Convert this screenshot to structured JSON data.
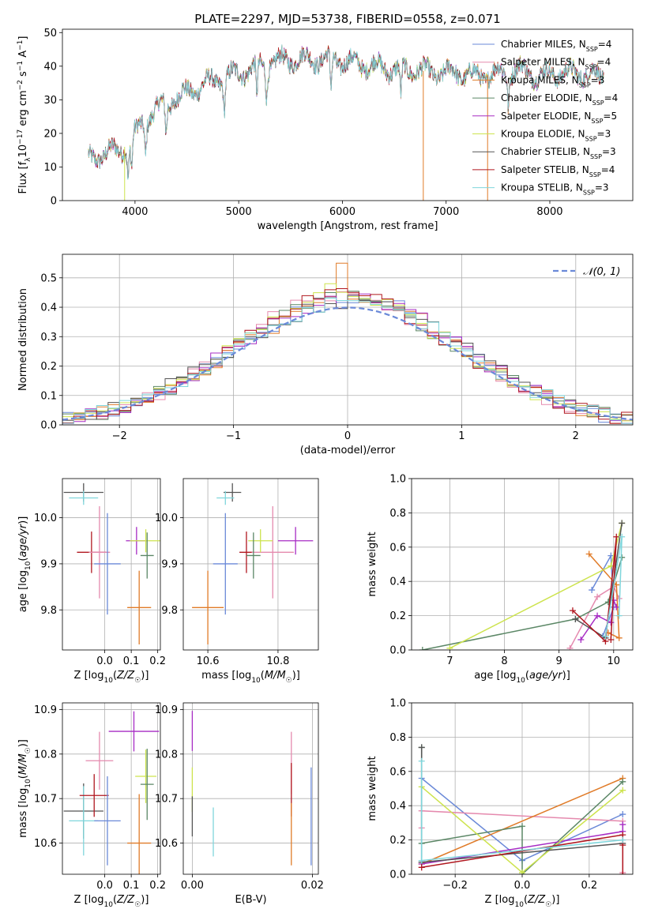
{
  "figure": {
    "title": "PLATE=2297, MJD=53738, FIBERID=0558, z=0.071"
  },
  "chart_data": [
    {
      "id": "spectrum",
      "type": "line",
      "xlabel": "wavelength [Angstrom, rest frame]",
      "ylabel": "Flux [f_λ 10^-17 erg cm^-2 s^-1 A^-1]",
      "xlim": [
        3300,
        8800
      ],
      "ylim": [
        0,
        51
      ],
      "xticks": [
        4000,
        5000,
        6000,
        7000,
        8000
      ],
      "yticks": [
        0,
        10,
        20,
        30,
        40,
        50
      ],
      "grid": false,
      "legend_position": "top-right",
      "continuum": {
        "x": [
          3550,
          3700,
          3850,
          3950,
          4000,
          4100,
          4200,
          4300,
          4500,
          4700,
          4900,
          5100,
          5300,
          5500,
          5700,
          5900,
          6100,
          6300,
          6500,
          6700,
          6900,
          7100,
          7300,
          7500,
          7700,
          7900,
          8100,
          8300,
          8500
        ],
        "y": [
          12,
          14,
          15,
          17,
          20,
          24,
          27,
          29,
          32,
          35,
          37,
          39,
          41,
          42,
          42,
          42,
          41,
          40,
          39,
          39,
          38,
          38,
          37,
          38,
          39,
          37,
          38,
          38,
          37
        ]
      },
      "absorption_lines": [
        3934,
        3969,
        4101,
        4300,
        4861,
        5175,
        5270,
        5890,
        6563,
        7600
      ],
      "series": [
        {
          "name": "Chabrier MILES, N_SSP=4",
          "color": "#6a89d8"
        },
        {
          "name": "Salpeter MILES, N_SSP=4",
          "color": "#e58aae"
        },
        {
          "name": "Kroupa MILES, N_SSP=3",
          "color": "#e07b28"
        },
        {
          "name": "Chabrier ELODIE, N_SSP=4",
          "color": "#5b8766"
        },
        {
          "name": "Salpeter ELODIE, N_SSP=5",
          "color": "#a72cc4"
        },
        {
          "name": "Kroupa ELODIE, N_SSP=3",
          "color": "#cde34d"
        },
        {
          "name": "Chabrier STELIB, N_SSP=3",
          "color": "#555555"
        },
        {
          "name": "Salpeter STELIB, N_SSP=4",
          "color": "#b0171f"
        },
        {
          "name": "Kroupa STELIB, N_SSP=3",
          "color": "#7fd6dc"
        }
      ],
      "vertical_spikes": [
        {
          "x": 3900,
          "color": "#cde34d"
        },
        {
          "x": 6780,
          "color": "#e07b28"
        },
        {
          "x": 7400,
          "color": "#e07b28"
        }
      ]
    },
    {
      "id": "residual-histogram",
      "type": "histogram",
      "xlabel": "(data-model)/error",
      "ylabel": "Normed distribution",
      "xlim": [
        -2.5,
        2.5
      ],
      "ylim": [
        0,
        0.58
      ],
      "xticks": [
        -2,
        -1,
        0,
        1,
        2
      ],
      "yticks": [
        0.0,
        0.1,
        0.2,
        0.3,
        0.4,
        0.5
      ],
      "grid": true,
      "legend_position": "top-right",
      "legend_entry": "𝒩(0, 1)",
      "bin_width": 0.1,
      "gaussian": {
        "mean": 0,
        "sigma": 1,
        "color": "#6a89d8"
      },
      "highlight_bins": [
        {
          "x": 0,
          "height": 0.55,
          "color": "#e07b28"
        },
        {
          "x": -0.1,
          "height": 0.48,
          "color": "#cde34d"
        }
      ]
    },
    {
      "id": "age-vs-Z",
      "type": "scatter",
      "xlabel": "Z [log₁₀(Z/Z☉)]",
      "ylabel": "age  [log₁₀(age/yr)]",
      "xlim": [
        -0.16,
        0.21
      ],
      "ylim": [
        9.713,
        10.085
      ],
      "xticks": [
        0.0,
        0.1,
        0.2
      ],
      "yticks": [
        9.8,
        9.9,
        10.0
      ],
      "grid": true,
      "points": [
        {
          "x": -0.08,
          "y": 10.055,
          "xerr": 0.075,
          "yerr": 0.02,
          "color": "#555555"
        },
        {
          "x": -0.08,
          "y": 10.043,
          "xerr": 0.055,
          "yerr": 0.015,
          "color": "#7fd6dc"
        },
        {
          "x": -0.05,
          "y": 9.925,
          "xerr": 0.055,
          "yerr": 0.045,
          "color": "#b0171f"
        },
        {
          "x": -0.02,
          "y": 9.925,
          "xerr": 0.04,
          "yerr": 0.1,
          "color": "#e58aae"
        },
        {
          "x": 0.01,
          "y": 9.9,
          "xerr": 0.05,
          "yerr": 0.11,
          "color": "#6a89d8"
        },
        {
          "x": 0.13,
          "y": 9.805,
          "xerr": 0.045,
          "yerr": 0.08,
          "color": "#e07b28"
        },
        {
          "x": 0.12,
          "y": 9.95,
          "xerr": 0.04,
          "yerr": 0.03,
          "color": "#a72cc4"
        },
        {
          "x": 0.155,
          "y": 9.95,
          "xerr": 0.06,
          "yerr": 0.025,
          "color": "#cde34d"
        },
        {
          "x": 0.16,
          "y": 9.918,
          "xerr": 0.025,
          "yerr": 0.05,
          "color": "#5b8766"
        }
      ]
    },
    {
      "id": "age-vs-mass",
      "type": "scatter",
      "xlabel": "mass [log₁₀(M/M☉)]",
      "ylabel": "",
      "xlim": [
        10.53,
        10.915
      ],
      "ylim": [
        9.713,
        10.085
      ],
      "xticks": [
        10.6,
        10.8
      ],
      "yticks": [
        9.8,
        9.9,
        10.0
      ],
      "grid": true,
      "points": [
        {
          "x": 10.67,
          "y": 10.055,
          "xerr": 0.025,
          "yerr": 0.02,
          "color": "#555555"
        },
        {
          "x": 10.65,
          "y": 10.043,
          "xerr": 0.025,
          "yerr": 0.015,
          "color": "#7fd6dc"
        },
        {
          "x": 10.71,
          "y": 9.925,
          "xerr": 0.02,
          "yerr": 0.045,
          "color": "#b0171f"
        },
        {
          "x": 10.785,
          "y": 9.925,
          "xerr": 0.06,
          "yerr": 0.1,
          "color": "#e58aae"
        },
        {
          "x": 10.65,
          "y": 9.9,
          "xerr": 0.035,
          "yerr": 0.11,
          "color": "#6a89d8"
        },
        {
          "x": 10.6,
          "y": 9.805,
          "xerr": 0.045,
          "yerr": 0.08,
          "color": "#e07b28"
        },
        {
          "x": 10.85,
          "y": 9.95,
          "xerr": 0.05,
          "yerr": 0.03,
          "color": "#a72cc4"
        },
        {
          "x": 10.75,
          "y": 9.95,
          "xerr": 0.035,
          "yerr": 0.025,
          "color": "#cde34d"
        },
        {
          "x": 10.73,
          "y": 9.918,
          "xerr": 0.02,
          "yerr": 0.05,
          "color": "#5b8766"
        }
      ]
    },
    {
      "id": "mass-weight-vs-age",
      "type": "line",
      "xlabel": "age  [log₁₀(age/yr)]",
      "ylabel": "mass weight",
      "xlim": [
        6.3,
        10.35
      ],
      "ylim": [
        0,
        1
      ],
      "xticks": [
        7,
        8,
        9,
        10
      ],
      "yticks": [
        0.0,
        0.2,
        0.4,
        0.6,
        0.8,
        1.0
      ],
      "grid": true,
      "series": [
        {
          "color": "#6a89d8",
          "x": [
            9.6,
            9.95,
            10.0,
            9.8
          ],
          "y": [
            0.35,
            0.55,
            0.25,
            0.08
          ]
        },
        {
          "color": "#e58aae",
          "x": [
            9.2,
            9.7,
            10.0,
            10.1
          ],
          "y": [
            0.01,
            0.31,
            0.37,
            0.3
          ]
        },
        {
          "color": "#e07b28",
          "x": [
            9.55,
            10.05,
            10.1,
            9.9
          ],
          "y": [
            0.56,
            0.38,
            0.07,
            0.1
          ]
        },
        {
          "color": "#5b8766",
          "x": [
            6.5,
            9.3,
            9.9,
            10.15
          ],
          "y": [
            0.0,
            0.18,
            0.28,
            0.54
          ]
        },
        {
          "color": "#a72cc4",
          "x": [
            9.4,
            9.7,
            9.95,
            10.0,
            10.05
          ],
          "y": [
            0.06,
            0.2,
            0.16,
            0.29,
            0.25
          ]
        },
        {
          "color": "#cde34d",
          "x": [
            7.0,
            9.95,
            10.15
          ],
          "y": [
            0.01,
            0.49,
            0.74
          ]
        },
        {
          "color": "#555555",
          "x": [
            9.3,
            9.85,
            10.15
          ],
          "y": [
            0.18,
            0.07,
            0.74
          ]
        },
        {
          "color": "#b0171f",
          "x": [
            9.25,
            9.85,
            10.05,
            9.95
          ],
          "y": [
            0.23,
            0.05,
            0.66,
            0.06
          ]
        },
        {
          "color": "#7fd6dc",
          "x": [
            9.85,
            10.15,
            10.1
          ],
          "y": [
            0.08,
            0.66,
            0.2
          ]
        }
      ]
    },
    {
      "id": "mass-vs-Z",
      "type": "scatter",
      "xlabel": "Z [log₁₀(Z/Z☉)]",
      "ylabel": "mass [log₁₀(M/M☉)]",
      "xlim": [
        -0.16,
        0.21
      ],
      "ylim": [
        10.53,
        10.915
      ],
      "xticks": [
        0.0,
        0.1,
        0.2
      ],
      "yticks": [
        10.6,
        10.7,
        10.8,
        10.9
      ],
      "grid": true,
      "points": [
        {
          "x": -0.08,
          "y": 10.672,
          "xerr": 0.075,
          "yerr": 0.062,
          "color": "#555555"
        },
        {
          "x": -0.08,
          "y": 10.65,
          "xerr": 0.055,
          "yerr": 0.078,
          "color": "#7fd6dc"
        },
        {
          "x": -0.04,
          "y": 10.707,
          "xerr": 0.055,
          "yerr": 0.048,
          "color": "#b0171f"
        },
        {
          "x": -0.02,
          "y": 10.785,
          "xerr": 0.052,
          "yerr": 0.065,
          "color": "#e58aae"
        },
        {
          "x": 0.01,
          "y": 10.65,
          "xerr": 0.05,
          "yerr": 0.1,
          "color": "#6a89d8"
        },
        {
          "x": 0.13,
          "y": 10.6,
          "xerr": 0.045,
          "yerr": 0.11,
          "color": "#e07b28"
        },
        {
          "x": 0.11,
          "y": 10.851,
          "xerr": 0.095,
          "yerr": 0.045,
          "color": "#a72cc4"
        },
        {
          "x": 0.155,
          "y": 10.75,
          "xerr": 0.04,
          "yerr": 0.06,
          "color": "#cde34d"
        },
        {
          "x": 0.16,
          "y": 10.732,
          "xerr": 0.025,
          "yerr": 0.08,
          "color": "#5b8766"
        }
      ]
    },
    {
      "id": "mass-vs-EBV",
      "type": "scatter",
      "xlabel": "E(B-V)",
      "ylabel": "",
      "xlim": [
        -0.0015,
        0.021
      ],
      "ylim": [
        10.53,
        10.915
      ],
      "xticks": [
        0.0,
        0.02
      ],
      "yticks": [
        10.6,
        10.7,
        10.8,
        10.9
      ],
      "grid": true,
      "points": [
        {
          "x": 0.0,
          "y": 10.852,
          "xerr": 0,
          "yerr": 0.045,
          "color": "#a72cc4"
        },
        {
          "x": 0.0,
          "y": 10.72,
          "xerr": 0,
          "yerr": 0.05,
          "color": "#cde34d"
        },
        {
          "x": 0.0,
          "y": 10.66,
          "xerr": 0,
          "yerr": 0.045,
          "color": "#555555"
        },
        {
          "x": 0.0035,
          "y": 10.625,
          "xerr": 0,
          "yerr": 0.055,
          "color": "#7fd6dc"
        },
        {
          "x": 0.0165,
          "y": 10.78,
          "xerr": 0,
          "yerr": 0.07,
          "color": "#e58aae"
        },
        {
          "x": 0.0165,
          "y": 10.72,
          "xerr": 0,
          "yerr": 0.06,
          "color": "#b0171f"
        },
        {
          "x": 0.0165,
          "y": 10.62,
          "xerr": 0,
          "yerr": 0.07,
          "color": "#e07b28"
        },
        {
          "x": 0.0198,
          "y": 10.66,
          "xerr": 0,
          "yerr": 0.11,
          "color": "#6a89d8"
        }
      ]
    },
    {
      "id": "mass-weight-vs-Z",
      "type": "line",
      "xlabel": "Z [log₁₀(Z/Z☉)]",
      "ylabel": "mass weight",
      "xlim": [
        -0.33,
        0.33
      ],
      "ylim": [
        0,
        1
      ],
      "xticks": [
        -0.2,
        0.0,
        0.2
      ],
      "yticks": [
        0.0,
        0.2,
        0.4,
        0.6,
        0.8,
        1.0
      ],
      "grid": true,
      "series": [
        {
          "color": "#6a89d8",
          "x": [
            -0.3,
            -0.3,
            0.0,
            0.3
          ],
          "y": [
            0.07,
            0.56,
            0.08,
            0.35
          ]
        },
        {
          "color": "#e58aae",
          "x": [
            -0.3,
            -0.3,
            0.3,
            0.3
          ],
          "y": [
            0.27,
            0.37,
            0.31,
            0.01
          ]
        },
        {
          "color": "#e07b28",
          "x": [
            -0.3,
            0.3
          ],
          "y": [
            0.06,
            0.56
          ]
        },
        {
          "color": "#5b8766",
          "x": [
            -0.3,
            -0.3,
            0.0,
            0.0,
            0.3
          ],
          "y": [
            0.74,
            0.18,
            0.28,
            0.0,
            0.54
          ]
        },
        {
          "color": "#a72cc4",
          "x": [
            -0.3,
            0.3,
            0.3
          ],
          "y": [
            0.06,
            0.25,
            0.29
          ]
        },
        {
          "color": "#cde34d",
          "x": [
            -0.3,
            0.0,
            0.3
          ],
          "y": [
            0.51,
            0.01,
            0.49
          ]
        },
        {
          "color": "#555555",
          "x": [
            -0.3,
            -0.3,
            0.3
          ],
          "y": [
            0.74,
            0.07,
            0.18
          ]
        },
        {
          "color": "#b0171f",
          "x": [
            -0.3,
            0.3,
            0.3,
            0.3
          ],
          "y": [
            0.04,
            0.23,
            0.17,
            0.0
          ]
        },
        {
          "color": "#7fd6dc",
          "x": [
            -0.3,
            -0.3,
            0.3
          ],
          "y": [
            0.66,
            0.08,
            0.2
          ]
        }
      ]
    }
  ]
}
